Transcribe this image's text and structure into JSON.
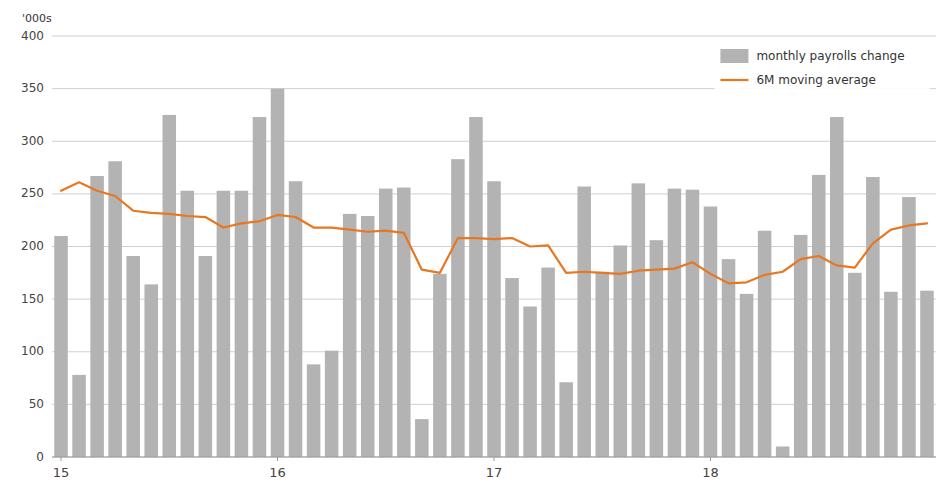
{
  "chart_data": {
    "type": "bar",
    "ylabel": "'000s",
    "categories": [
      "15",
      null,
      null,
      null,
      null,
      null,
      null,
      null,
      null,
      null,
      null,
      null,
      "16",
      null,
      null,
      null,
      null,
      null,
      null,
      null,
      null,
      null,
      null,
      null,
      "17",
      null,
      null,
      null,
      null,
      null,
      null,
      null,
      null,
      null,
      null,
      null,
      "18",
      null,
      null,
      null,
      null,
      null,
      null,
      null,
      null,
      null,
      null,
      null,
      null
    ],
    "series": [
      {
        "name": "monthly payrolls change",
        "type": "bar",
        "color": "#b3b3b3",
        "values": [
          210,
          78,
          267,
          281,
          191,
          164,
          325,
          253,
          191,
          253,
          253,
          323,
          350,
          262,
          88,
          101,
          231,
          229,
          255,
          256,
          36,
          174,
          283,
          323,
          262,
          170,
          143,
          180,
          71,
          257,
          176,
          201,
          260,
          206,
          255,
          254,
          238,
          188,
          155,
          215,
          10,
          211,
          268,
          323,
          175,
          266,
          157,
          247,
          158
        ]
      },
      {
        "name": "6M moving average",
        "type": "line",
        "color": "#e87722",
        "values": [
          253,
          261,
          253,
          248,
          234,
          232,
          231,
          229,
          228,
          218,
          222,
          224,
          230,
          228,
          218,
          218,
          216,
          214,
          215,
          213,
          178,
          175,
          208,
          208,
          207,
          208,
          200,
          201,
          175,
          176,
          175,
          174,
          177,
          178,
          179,
          185,
          174,
          165,
          166,
          173,
          176,
          188,
          191,
          182,
          180,
          203,
          216,
          220,
          222
        ]
      }
    ],
    "ylim": [
      0,
      400
    ],
    "yticks": [
      0,
      50,
      100,
      150,
      200,
      250,
      300,
      350,
      400
    ],
    "grid": true,
    "legend": "upper right"
  }
}
